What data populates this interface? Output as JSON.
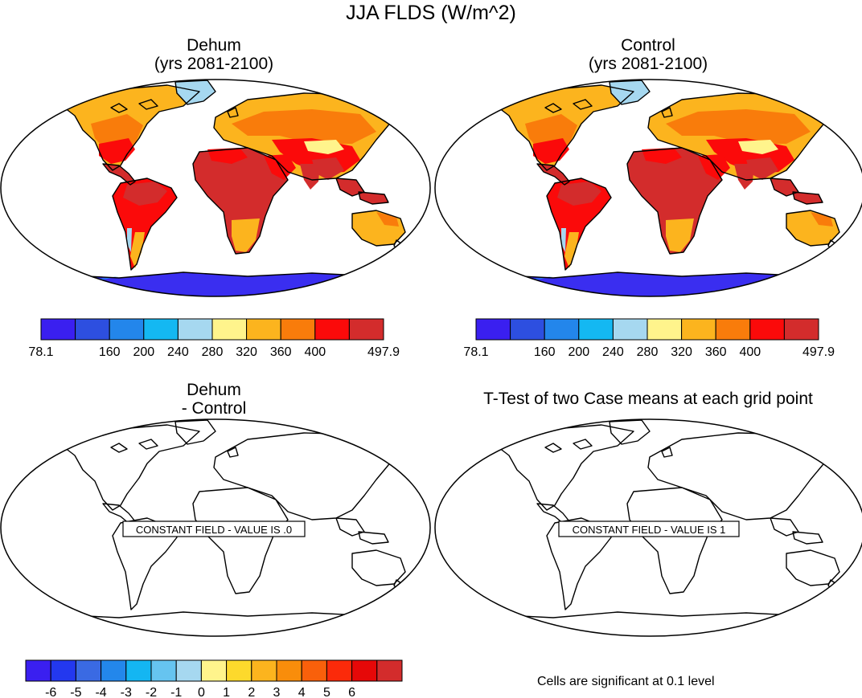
{
  "figure": {
    "title": "JJA FLDS (W/m^2)"
  },
  "panels": [
    {
      "id": "dehum",
      "title_line1": "Dehum",
      "title_line2": "(yrs 2081-2100)"
    },
    {
      "id": "control",
      "title_line1": "Control",
      "title_line2": "(yrs 2081-2100)"
    },
    {
      "id": "difference",
      "title_line1": "Dehum",
      "title_line2": "- Control",
      "annotation": "CONSTANT FIELD - VALUE IS .0"
    },
    {
      "id": "ttest",
      "title_line1": "T-Test of two Case means at each grid point",
      "annotation": "CONSTANT FIELD - VALUE IS 1"
    }
  ],
  "colorbars": {
    "main": {
      "colors": [
        "#3a1ff0",
        "#2d4fe0",
        "#2386eb",
        "#14b8f2",
        "#a6d8f0",
        "#fff48c",
        "#fcb41e",
        "#f97c0b",
        "#fb0a0a",
        "#d32c2c"
      ],
      "labels": [
        "78.1",
        "160",
        "200",
        "240",
        "280",
        "320",
        "360",
        "400",
        "497.9"
      ]
    },
    "diff": {
      "colors": [
        "#3a1ff0",
        "#2338ef",
        "#3a6ae3",
        "#2387eb",
        "#14b6f2",
        "#66c4f0",
        "#a6d8f0",
        "#fff48c",
        "#fdd92c",
        "#fcb41e",
        "#f98d0b",
        "#f9600b",
        "#fb2a0a",
        "#e60808",
        "#d32c2c"
      ],
      "labels": [
        "-6",
        "-5",
        "-4",
        "-3",
        "-2",
        "-1",
        "0",
        "1",
        "2",
        "3",
        "4",
        "5",
        "6"
      ]
    }
  },
  "notes": {
    "significance": "Cells are significant at 0.1 level"
  },
  "palette": {
    "ocean": "#ffffff",
    "coast": "#000000",
    "antarctica": "#3a2ef0",
    "greenland": "#a6d8f0",
    "tropics": "#d32c2c",
    "hot": "#fb0a0a",
    "warm": "#f97c0b",
    "mild": "#fcb41e",
    "cool": "#fff48c"
  }
}
